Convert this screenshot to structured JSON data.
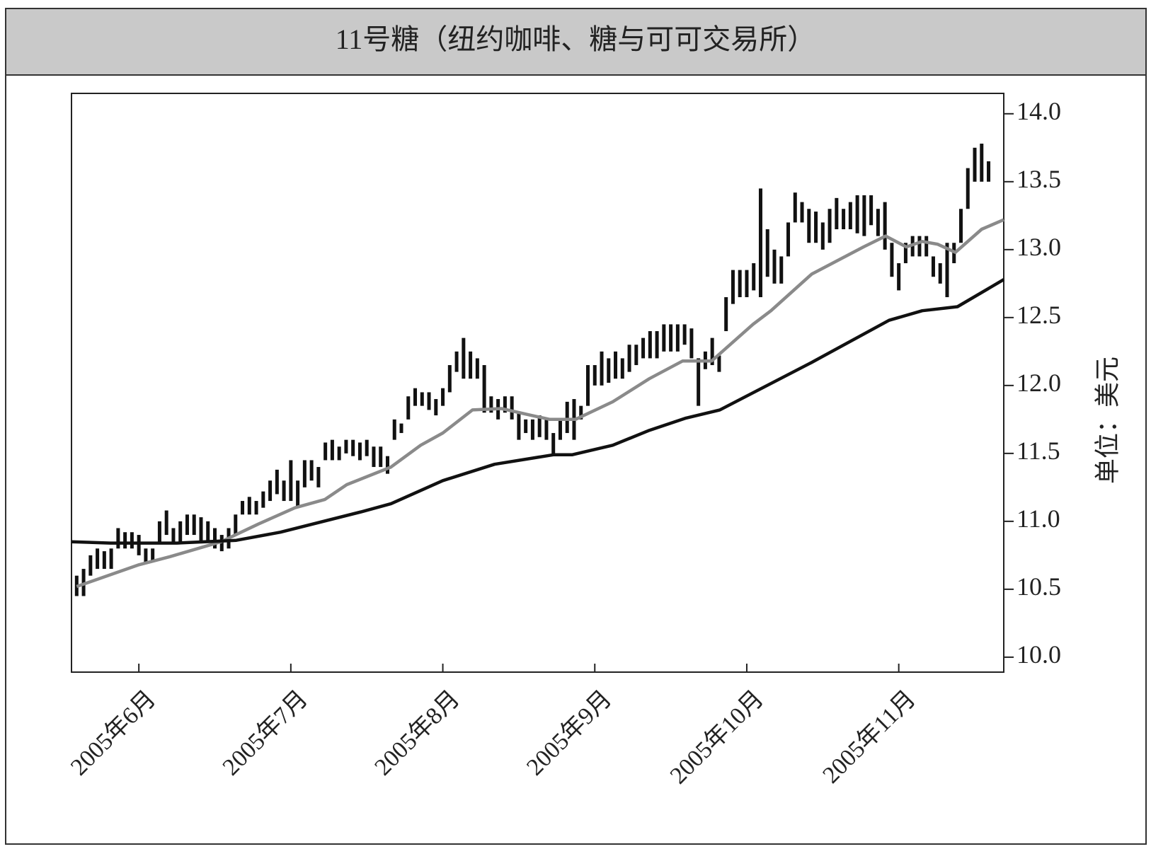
{
  "chart_data": {
    "type": "range-bar",
    "title": "11号糖（纽约咖啡、糖与可可交易所）",
    "ylabel": "单位：美元",
    "color": "#111111",
    "low": [
      10.45,
      10.45,
      10.6,
      10.65,
      10.65,
      10.65,
      10.8,
      10.8,
      10.8,
      10.75,
      10.7,
      10.7,
      10.85,
      10.9,
      10.85,
      10.85,
      10.9,
      10.9,
      10.85,
      10.85,
      10.8,
      10.78,
      10.8,
      10.9,
      11.05,
      11.05,
      11.05,
      11.1,
      11.15,
      11.2,
      11.15,
      11.15,
      11.1,
      11.25,
      11.3,
      11.25,
      11.45,
      11.45,
      11.45,
      11.5,
      11.48,
      11.45,
      11.48,
      11.4,
      11.4,
      11.35,
      11.6,
      11.65,
      11.75,
      11.85,
      11.85,
      11.82,
      11.78,
      11.85,
      11.95,
      12.1,
      12.05,
      12.05,
      12.05,
      11.8,
      11.8,
      11.75,
      11.8,
      11.75,
      11.6,
      11.65,
      11.6,
      11.62,
      11.6,
      11.48,
      11.6,
      11.65,
      11.6,
      11.75,
      11.85,
      12.0,
      12.0,
      12.02,
      12.05,
      12.05,
      12.1,
      12.15,
      12.2,
      12.2,
      12.2,
      12.25,
      12.25,
      12.25,
      12.3,
      12.2,
      11.85,
      12.12,
      12.15,
      12.1,
      12.4,
      12.6,
      12.65,
      12.65,
      12.7,
      12.65,
      12.8,
      12.75,
      12.75,
      12.95,
      13.2,
      13.2,
      13.05,
      13.05,
      13.0,
      13.05,
      13.15,
      13.15,
      13.15,
      13.12,
      13.1,
      13.18,
      13.1,
      13.0,
      12.8,
      12.7,
      12.9,
      12.95,
      12.95,
      12.95,
      12.8,
      12.75,
      12.65,
      12.9,
      13.05,
      13.3,
      13.5,
      13.5,
      13.5
    ],
    "high": [
      10.6,
      10.65,
      10.75,
      10.8,
      10.78,
      10.8,
      10.95,
      10.92,
      10.92,
      10.9,
      10.8,
      10.8,
      11.0,
      11.08,
      10.95,
      11.0,
      11.05,
      11.05,
      11.03,
      11.0,
      10.95,
      10.9,
      10.95,
      11.05,
      11.15,
      11.18,
      11.15,
      11.22,
      11.3,
      11.38,
      11.3,
      11.45,
      11.3,
      11.45,
      11.45,
      11.4,
      11.58,
      11.6,
      11.55,
      11.6,
      11.6,
      11.58,
      11.6,
      11.55,
      11.55,
      11.48,
      11.75,
      11.72,
      11.92,
      11.98,
      11.95,
      11.95,
      11.9,
      11.98,
      12.15,
      12.25,
      12.35,
      12.25,
      12.2,
      12.15,
      11.92,
      11.9,
      11.92,
      11.92,
      11.8,
      11.75,
      11.75,
      11.78,
      11.75,
      11.65,
      11.75,
      11.88,
      11.9,
      11.85,
      12.15,
      12.15,
      12.25,
      12.2,
      12.25,
      12.2,
      12.3,
      12.3,
      12.35,
      12.4,
      12.4,
      12.45,
      12.45,
      12.45,
      12.45,
      12.42,
      12.2,
      12.25,
      12.35,
      12.22,
      12.65,
      12.85,
      12.85,
      12.85,
      12.9,
      13.45,
      13.15,
      13.0,
      12.95,
      13.2,
      13.42,
      13.35,
      13.3,
      13.28,
      13.2,
      13.3,
      13.38,
      13.3,
      13.35,
      13.4,
      13.4,
      13.4,
      13.3,
      13.35,
      13.05,
      12.9,
      13.05,
      13.1,
      13.1,
      13.1,
      12.95,
      12.9,
      13.05,
      13.05,
      13.3,
      13.6,
      13.75,
      13.78,
      13.65
    ],
    "lines": [
      {
        "color": "#8a8a8a",
        "x": [
          0,
          9,
          13.5,
          20.9,
          26.3,
          31.6,
          35.9,
          39.1,
          45.5,
          49.8,
          53,
          57.3,
          61.5,
          65.8,
          68.5,
          72.2,
          77.6,
          82.9,
          87.7,
          91.9,
          97.9,
          100.5,
          106.4,
          113.9,
          117.1,
          120.1,
          122.4,
          124.6,
          127.2,
          131,
          134.2
        ],
        "values": [
          10.52,
          10.68,
          10.74,
          10.85,
          10.98,
          11.1,
          11.16,
          11.27,
          11.4,
          11.56,
          11.65,
          11.82,
          11.83,
          11.78,
          11.75,
          11.75,
          11.88,
          12.05,
          12.18,
          12.18,
          12.45,
          12.55,
          12.82,
          13.02,
          13.1,
          13.02,
          13.06,
          13.04,
          12.98,
          13.15,
          13.22
        ]
      },
      {
        "color": "#111111",
        "x": [
          -0.75,
          4.9,
          14.5,
          23.1,
          29.5,
          41.2,
          45.5,
          53,
          60.5,
          69,
          71.7,
          77.6,
          82.9,
          88.2,
          93.1,
          106.4,
          117.6,
          122.4,
          127.5,
          134.2
        ],
        "values": [
          10.85,
          10.84,
          10.84,
          10.86,
          10.92,
          11.07,
          11.13,
          11.3,
          11.42,
          11.49,
          11.49,
          11.56,
          11.67,
          11.76,
          11.82,
          12.17,
          12.48,
          12.55,
          12.58,
          12.78
        ]
      }
    ],
    "xlim": [
      -0.75,
      134.2
    ],
    "xticks": [
      {
        "value": 9,
        "label": "2005年6月"
      },
      {
        "value": 31,
        "label": "2005年7月"
      },
      {
        "value": 53,
        "label": "2005年8月"
      },
      {
        "value": 75,
        "label": "2005年9月"
      },
      {
        "value": 97,
        "label": "2005年10月"
      },
      {
        "value": 119,
        "label": "2005年11月"
      }
    ],
    "ylim": [
      9.89,
      14.15
    ],
    "yticks": [
      {
        "value": 10,
        "label": "10.0"
      },
      10.5,
      {
        "value": 11,
        "label": "11.0"
      },
      11.5,
      {
        "value": 12,
        "label": "12.0"
      },
      12.5,
      {
        "value": 13,
        "label": "13.0"
      },
      13.5,
      {
        "value": 14,
        "label": "14.0"
      }
    ]
  }
}
